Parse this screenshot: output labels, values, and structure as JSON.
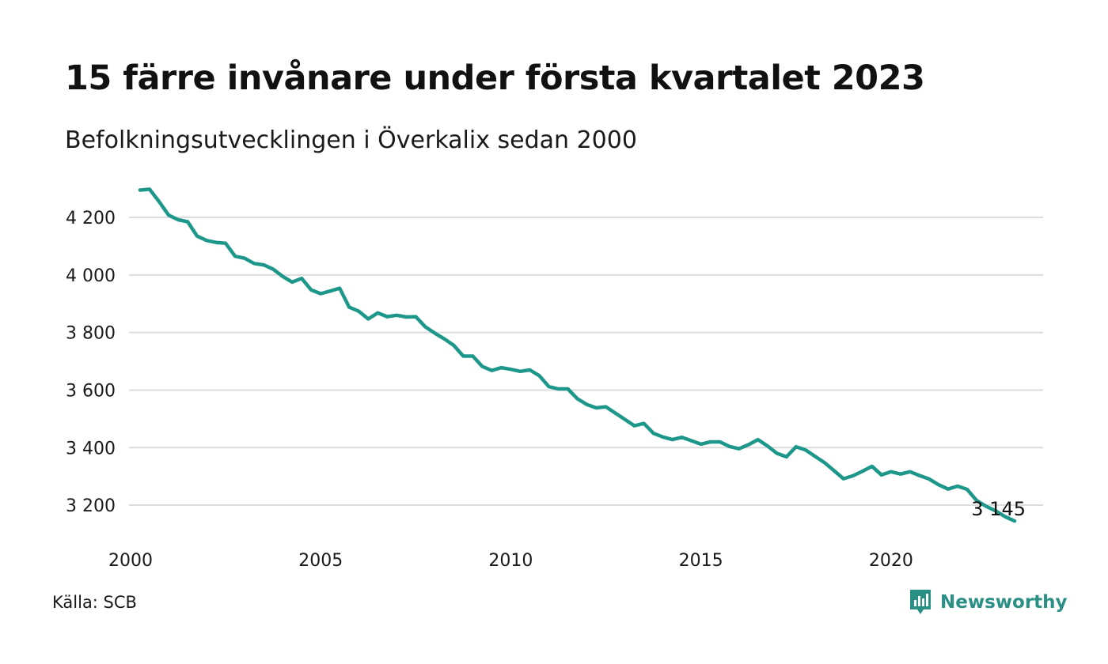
{
  "header": {
    "title": "15 färre invånare under första kvartalet 2023",
    "subtitle": "Befolkningsutvecklingen i Överkalix sedan 2000"
  },
  "footer": {
    "source": "Källa: SCB",
    "brand": "Newsworthy",
    "brand_icon": "bar-chart-speech-bubble-icon"
  },
  "colors": {
    "line": "#1d978a",
    "grid": "#dcdcdc",
    "brand": "#2a8f84"
  },
  "chart_data": {
    "type": "line",
    "title": "15 färre invånare under första kvartalet 2023",
    "subtitle": "Befolkningsutvecklingen i Överkalix sedan 2000",
    "xlabel": "",
    "ylabel": "",
    "x_ticks": [
      2000,
      2005,
      2010,
      2015,
      2020
    ],
    "y_ticks": [
      3200,
      3400,
      3600,
      3800,
      4000,
      4200
    ],
    "y_tick_labels": [
      "3 200",
      "3 400",
      "3 600",
      "3 800",
      "4 000",
      "4 200"
    ],
    "ylim": [
      3115,
      4310
    ],
    "xlim": [
      2000.0,
      2023.25
    ],
    "grid": true,
    "end_label": "3 145",
    "series": [
      {
        "x": [
          2000.25,
          2000.5,
          2000.75,
          2001.0,
          2001.25,
          2001.5,
          2001.75,
          2002.0,
          2002.25,
          2002.5,
          2002.75,
          2003.0,
          2003.25,
          2003.5,
          2003.75,
          2004.0,
          2004.25,
          2004.5,
          2004.75,
          2005.0,
          2005.25,
          2005.5,
          2005.75,
          2006.0,
          2006.25,
          2006.5,
          2006.75,
          2007.0,
          2007.25,
          2007.5,
          2007.75,
          2008.0,
          2008.25,
          2008.5,
          2008.75,
          2009.0,
          2009.25,
          2009.5,
          2009.75,
          2010.0,
          2010.25,
          2010.5,
          2010.75,
          2011.0,
          2011.25,
          2011.5,
          2011.75,
          2012.0,
          2012.25,
          2012.5,
          2012.75,
          2013.0,
          2013.25,
          2013.5,
          2013.75,
          2014.0,
          2014.25,
          2014.5,
          2014.75,
          2015.0,
          2015.25,
          2015.5,
          2015.75,
          2016.0,
          2016.25,
          2016.5,
          2016.75,
          2017.0,
          2017.25,
          2017.5,
          2017.75,
          2018.0,
          2018.25,
          2018.5,
          2018.75,
          2019.0,
          2019.25,
          2019.5,
          2019.75,
          2020.0,
          2020.25,
          2020.5,
          2020.75,
          2021.0,
          2021.25,
          2021.5,
          2021.75,
          2022.0,
          2022.25,
          2022.5,
          2022.75,
          2023.0,
          2023.25
        ],
        "values": [
          4295,
          4298,
          4255,
          4208,
          4192,
          4185,
          4135,
          4120,
          4113,
          4110,
          4065,
          4058,
          4040,
          4035,
          4020,
          3995,
          3975,
          3988,
          3948,
          3935,
          3944,
          3954,
          3888,
          3874,
          3847,
          3868,
          3855,
          3860,
          3854,
          3855,
          3820,
          3798,
          3778,
          3755,
          3718,
          3718,
          3682,
          3668,
          3678,
          3672,
          3665,
          3670,
          3650,
          3612,
          3604,
          3604,
          3570,
          3550,
          3538,
          3542,
          3520,
          3498,
          3476,
          3484,
          3450,
          3437,
          3428,
          3436,
          3424,
          3412,
          3420,
          3420,
          3404,
          3396,
          3410,
          3428,
          3406,
          3380,
          3368,
          3403,
          3392,
          3370,
          3348,
          3320,
          3292,
          3302,
          3318,
          3335,
          3305,
          3316,
          3308,
          3316,
          3303,
          3291,
          3271,
          3256,
          3266,
          3255,
          3216,
          3196,
          3180,
          3160,
          3145
        ]
      }
    ]
  }
}
